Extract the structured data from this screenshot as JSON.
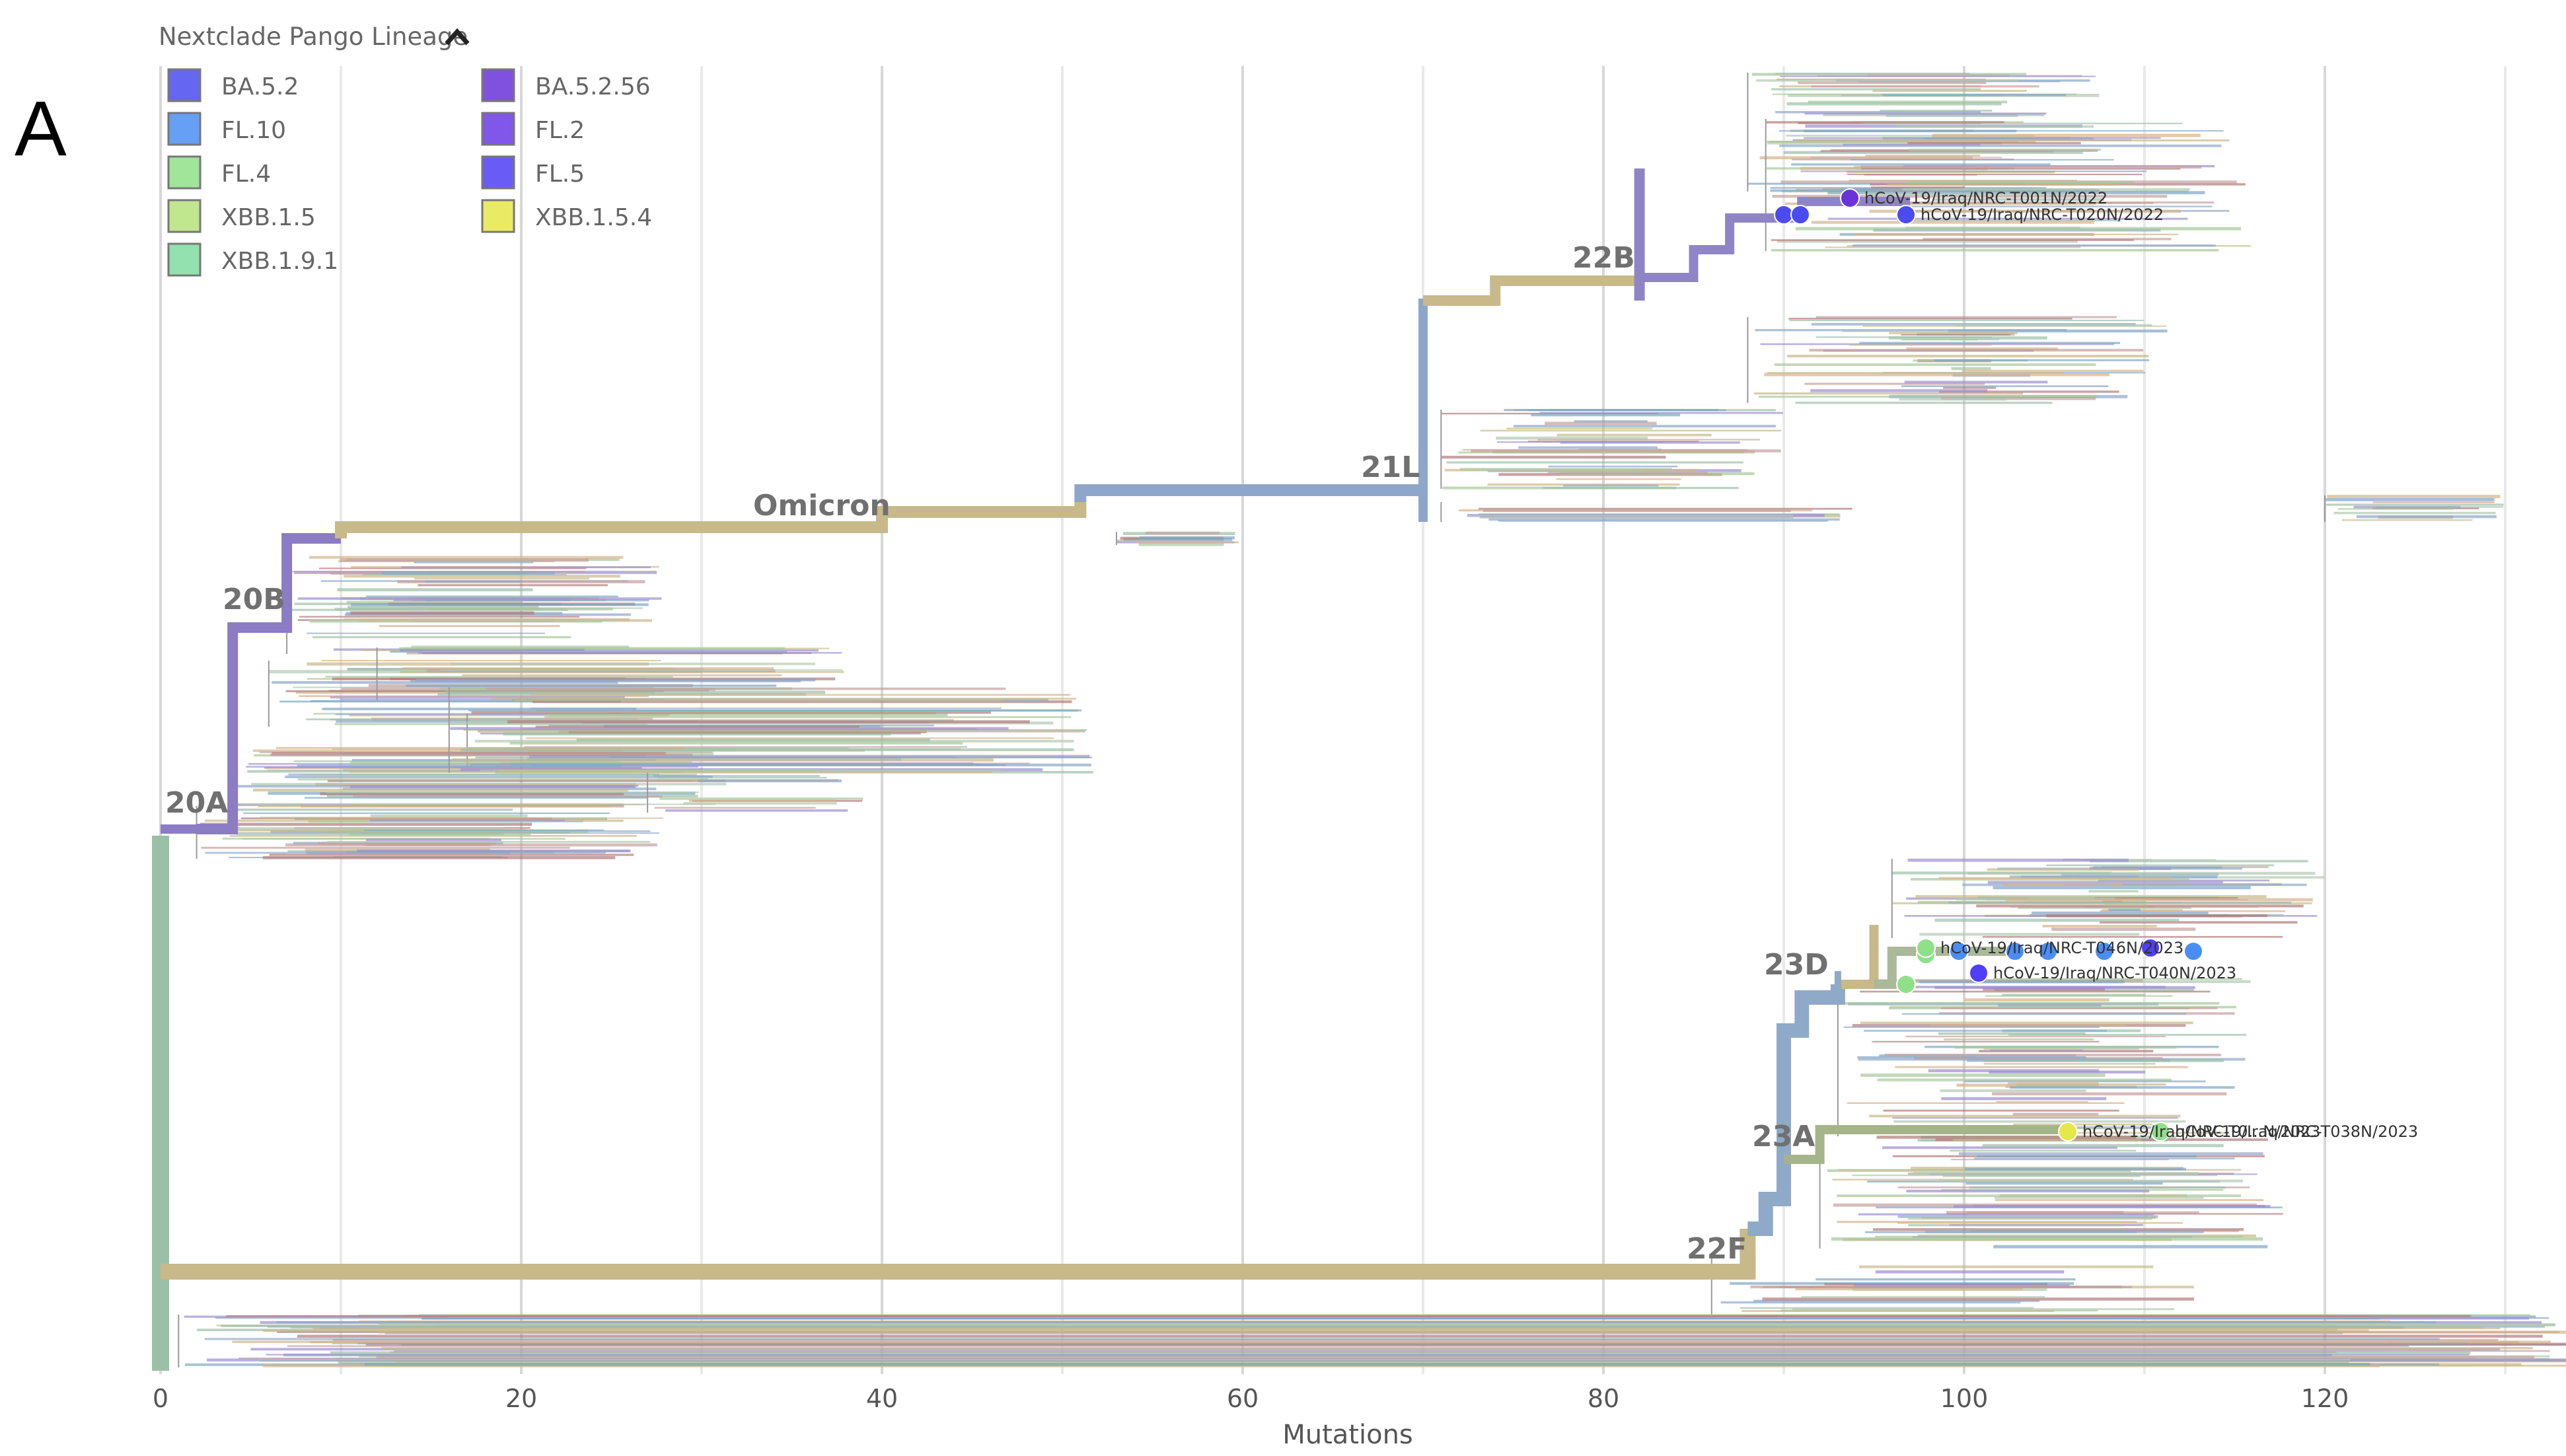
{
  "panel_label": "A",
  "chart_data": {
    "type": "phylogenetic-tree",
    "title": "",
    "xlabel": "Mutations",
    "ylabel": "",
    "xlim": [
      0,
      133
    ],
    "xticks": [
      0,
      20,
      40,
      60,
      80,
      100,
      120
    ],
    "tick_labels": [
      "0",
      "20",
      "40",
      "60",
      "80",
      "100",
      "120"
    ],
    "grid": true,
    "legend": {
      "title": "Nextclade Pango Lineage",
      "toggle_icon": "chevron-up-icon",
      "placement": "top-left",
      "entries": [
        {
          "label": "BA.5.2",
          "color": "#4a4cf0"
        },
        {
          "label": "FL.10",
          "color": "#4a8ef5"
        },
        {
          "label": "FL.4",
          "color": "#8fe088"
        },
        {
          "label": "XBB.1.5",
          "color": "#b5e27a"
        },
        {
          "label": "XBB.1.9.1",
          "color": "#7fdca0"
        },
        {
          "label": "BA.5.2.56",
          "color": "#6a33d9"
        },
        {
          "label": "FL.2",
          "color": "#6b38e6"
        },
        {
          "label": "FL.5",
          "color": "#4f3ff5"
        },
        {
          "label": "XBB.1.5.4",
          "color": "#e6e84a"
        }
      ]
    },
    "clades": [
      {
        "label": "20A",
        "mutations": 0
      },
      {
        "label": "20B",
        "mutations": 4
      },
      {
        "label": "Omicron",
        "mutations": 40
      },
      {
        "label": "21L",
        "mutations": 70
      },
      {
        "label": "22B",
        "mutations": 82
      },
      {
        "label": "22F",
        "mutations": 88
      },
      {
        "label": "23A",
        "mutations": 91
      },
      {
        "label": "23D",
        "mutations": 93
      }
    ],
    "highlighted_samples": [
      {
        "label": "hCoV-19/Iraq/NRC-T001N/2022",
        "mutations": 94,
        "lineage": "BA.5.2.56"
      },
      {
        "label": "hCoV-19/Iraq/NRC-T020N/2022",
        "mutations": 97,
        "lineage": "BA.5.2"
      },
      {
        "label": "hCoV-19/Iraq/NRC-T040N/2023",
        "mutations": 101,
        "lineage": "FL.5"
      },
      {
        "label": "hCoV-19/Iraq/NRC-T046N/2023",
        "mutations": 98,
        "lineage": "FL.4"
      },
      {
        "label": "hCoV-19/Iraq/NRC-T038N/2023",
        "mutations": 111,
        "lineage": "FL.4"
      },
      {
        "label": "hCoV-19/Iraq/NRC-T0...N/2023",
        "mutations": 106,
        "lineage": "XBB.1.5.4"
      }
    ]
  },
  "colors": {
    "clade_20A": "#9cbfa8",
    "clade_20B": "#8b7cc4",
    "clade_omicron": "#c7b98a",
    "clade_21L": "#8ea6c9",
    "clade_22B": "#8f85c6",
    "clade_22F": "#c7b98a",
    "clade_23": "#8fa9c9"
  }
}
